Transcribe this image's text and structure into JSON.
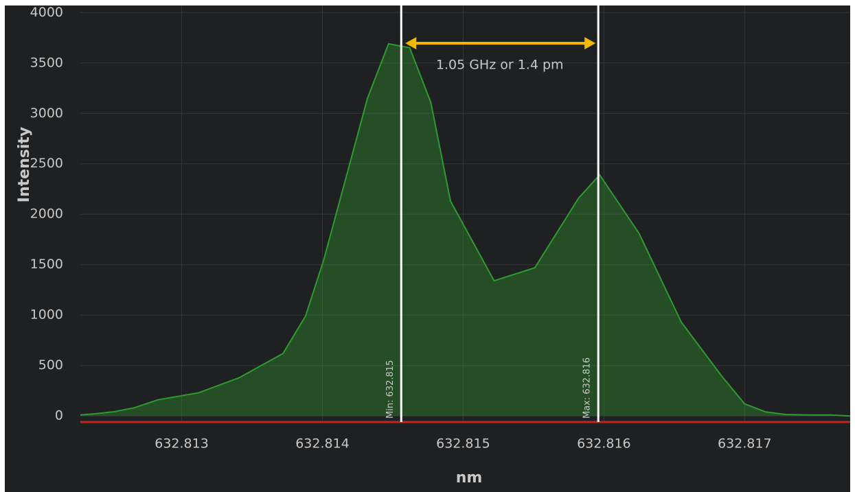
{
  "chart_data": {
    "type": "area",
    "x_label": "nm",
    "y_label": "Intensity",
    "x": [
      632.81228,
      632.81237,
      632.81251,
      632.81266,
      632.81283,
      632.81312,
      632.81341,
      632.81372,
      632.81388,
      632.81401,
      632.81432,
      632.81447,
      632.81462,
      632.81477,
      632.81491,
      632.81522,
      632.81551,
      632.81582,
      632.81597,
      632.81625,
      632.81655,
      632.81684,
      632.817,
      632.81715,
      632.81729,
      632.81746,
      632.81761,
      632.81775
    ],
    "values": [
      10,
      20,
      40,
      80,
      160,
      230,
      380,
      620,
      990,
      1550,
      3150,
      3690,
      3650,
      3110,
      2130,
      1340,
      1470,
      2160,
      2390,
      1810,
      930,
      390,
      120,
      40,
      15,
      10,
      10,
      0
    ],
    "color": "#2f9a2f",
    "xlim": [
      632.81228,
      632.81775
    ],
    "xticks": [
      632.813,
      632.814,
      632.815,
      632.816,
      632.817
    ],
    "ylim": [
      -60,
      4070
    ],
    "yticks": [
      0,
      500,
      1000,
      1500,
      2000,
      2500,
      3000,
      3500,
      4000
    ],
    "grid": true,
    "markers": [
      {
        "x": 632.81456,
        "label": "Min: 632.815"
      },
      {
        "x": 632.81596,
        "label": "Max: 632.816"
      }
    ],
    "annotation": "1.05 GHz or 1.4 pm",
    "annotation_color": "#f5b800"
  }
}
